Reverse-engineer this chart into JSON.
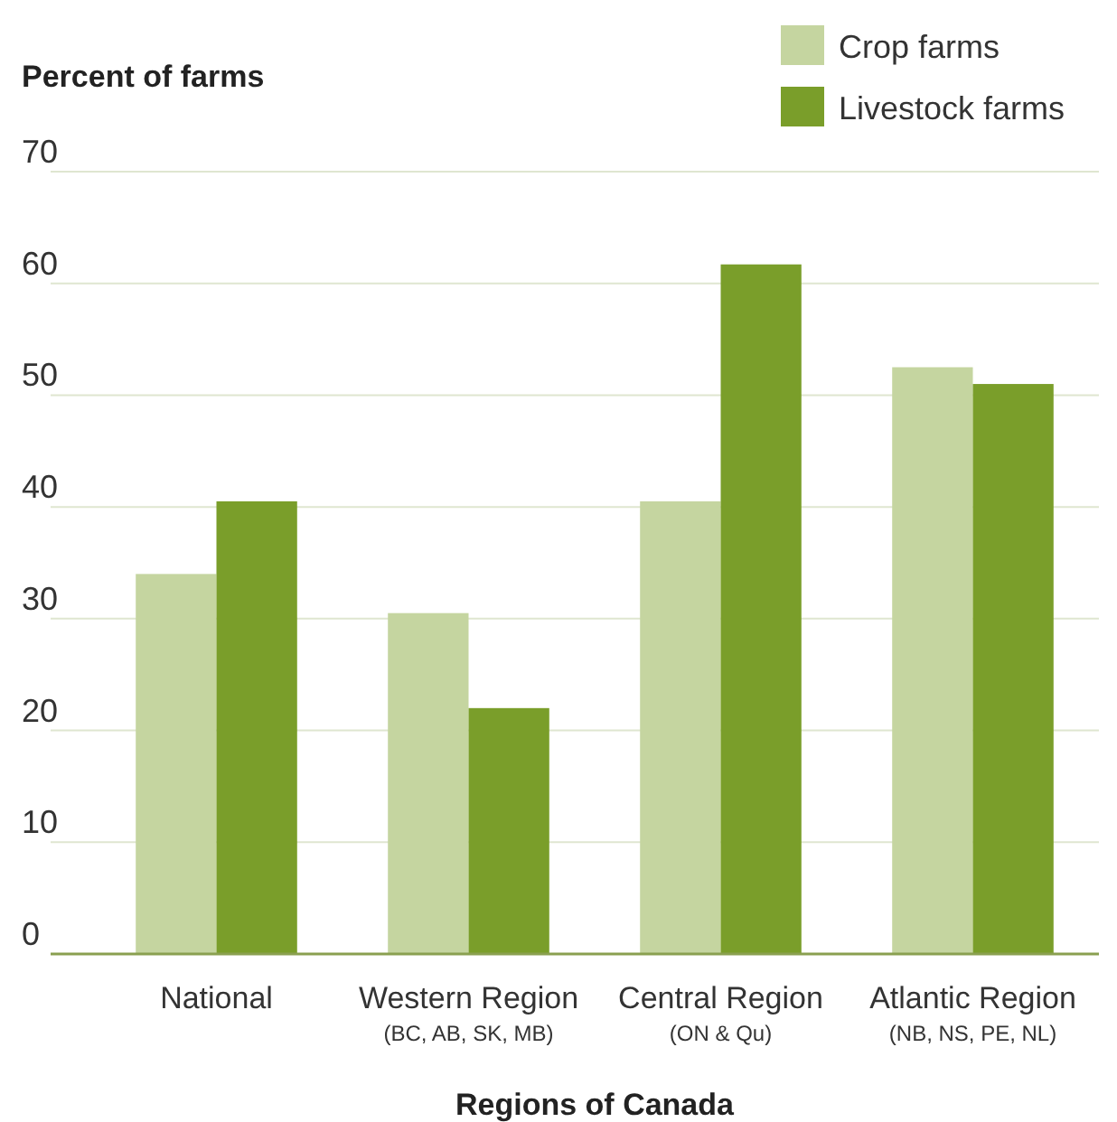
{
  "chart_data": {
    "type": "bar",
    "ylabel": "Percent of farms",
    "xlabel": "Regions of Canada",
    "categories": [
      "National",
      "Western Region\n(BC, AB, SK, MB)",
      "Central Region\n(ON & Qu)",
      "Atlantic Region\n(NB, NS, PE, NL)"
    ],
    "series": [
      {
        "name": "Crop farms",
        "color": "#c5d5a0",
        "values": [
          34,
          30.5,
          40.5,
          52.5
        ]
      },
      {
        "name": "Livestock farms",
        "color": "#7a9e2a",
        "values": [
          40.5,
          22,
          61.7,
          51
        ]
      }
    ],
    "ylim": [
      0,
      70
    ],
    "yticks": [
      0,
      10,
      20,
      30,
      40,
      50,
      60,
      70
    ],
    "grid": "y",
    "legend": "top right"
  }
}
